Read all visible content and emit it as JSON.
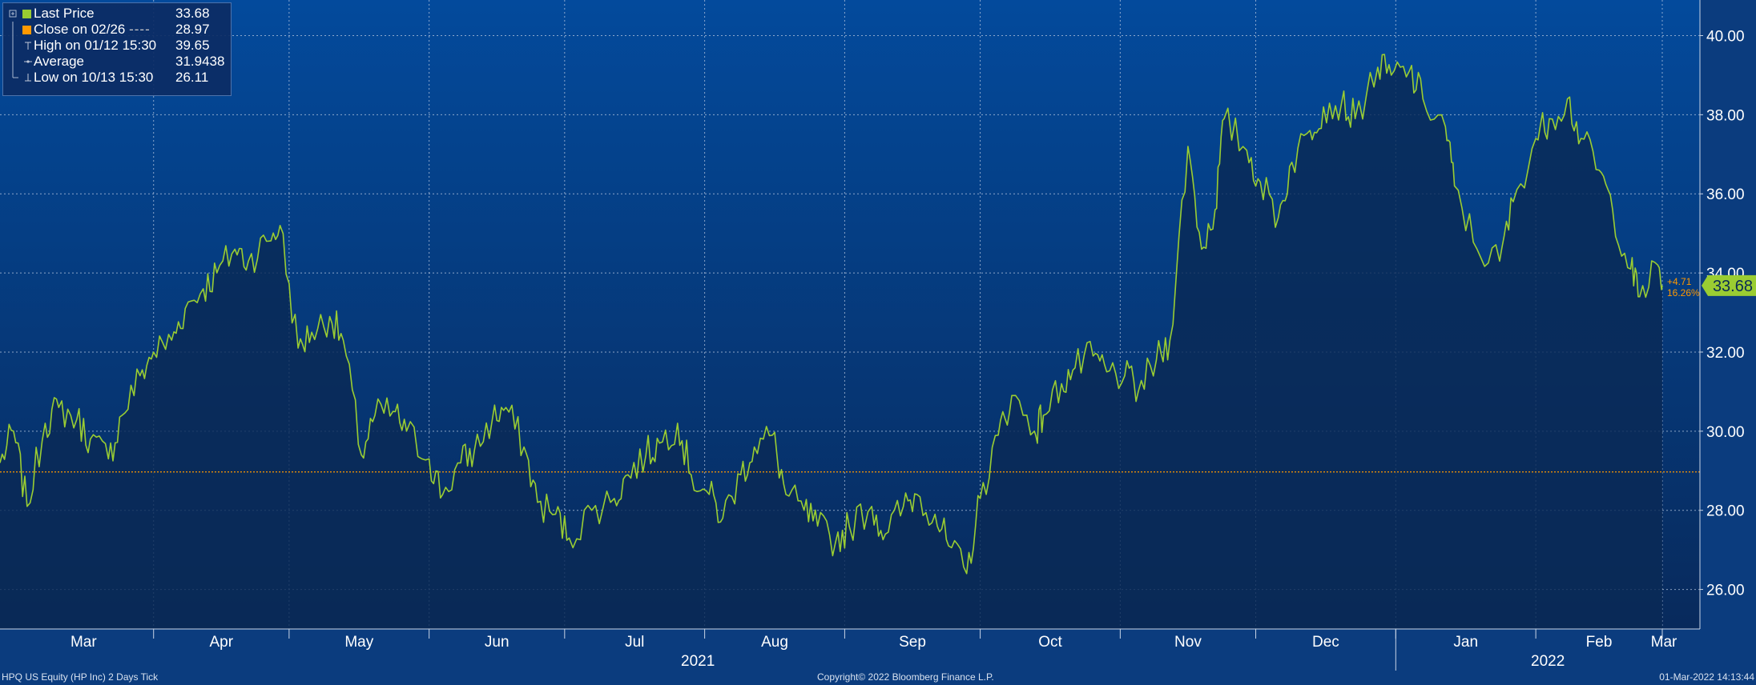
{
  "legend": {
    "last_price": {
      "label": "Last Price",
      "value": "33.68",
      "color": "#9acd32"
    },
    "close": {
      "label": "Close on 02/26",
      "dash": "----",
      "value": "28.97",
      "color": "#ff9900"
    },
    "high": {
      "label": "High on 01/12 15:30",
      "value": "39.65"
    },
    "average": {
      "label": "Average",
      "value": "31.9438"
    },
    "low": {
      "label": "Low on 10/13 15:30",
      "value": "26.11"
    }
  },
  "last_price_badge": {
    "value": "33.68",
    "change": "+4.71",
    "change_pct": "16.26%"
  },
  "footer": {
    "left": "HPQ US Equity (HP Inc) 2 Days  Tick",
    "center": "Copyright© 2022 Bloomberg Finance L.P.",
    "right": "01-Mar-2022 14:13:44"
  },
  "chart_data": {
    "type": "line",
    "y_axis_position": "right",
    "ylim": [
      25.0,
      40.9
    ],
    "yticks": [
      "26.00",
      "28.00",
      "30.00",
      "32.00",
      "34.00",
      "36.00",
      "38.00",
      "40.00"
    ],
    "x_months": [
      "Mar",
      "Apr",
      "May",
      "Jun",
      "Jul",
      "Aug",
      "Sep",
      "Oct",
      "Nov",
      "Dec",
      "Jan",
      "Feb",
      "Mar"
    ],
    "x_years": [
      "2021",
      "2022"
    ],
    "reference_line": {
      "name": "Close on 02/26",
      "value": 28.97,
      "color": "#ff9900"
    },
    "grid": true,
    "series": [
      {
        "name": "Last Price",
        "color": "#9acd32",
        "x": [
          "2021-02-26",
          "2021-03-01",
          "2021-03-04",
          "2021-03-08",
          "2021-03-11",
          "2021-03-15",
          "2021-03-18",
          "2021-03-22",
          "2021-03-25",
          "2021-03-29",
          "2021-04-01",
          "2021-04-05",
          "2021-04-08",
          "2021-04-12",
          "2021-04-15",
          "2021-04-19",
          "2021-04-22",
          "2021-04-26",
          "2021-04-29",
          "2021-05-03",
          "2021-05-06",
          "2021-05-10",
          "2021-05-13",
          "2021-05-17",
          "2021-05-20",
          "2021-05-24",
          "2021-05-27",
          "2021-06-01",
          "2021-06-04",
          "2021-06-08",
          "2021-06-11",
          "2021-06-15",
          "2021-06-18",
          "2021-06-22",
          "2021-06-25",
          "2021-06-29",
          "2021-07-02",
          "2021-07-07",
          "2021-07-12",
          "2021-07-15",
          "2021-07-19",
          "2021-07-22",
          "2021-07-26",
          "2021-07-29",
          "2021-08-02",
          "2021-08-05",
          "2021-08-09",
          "2021-08-12",
          "2021-08-16",
          "2021-08-19",
          "2021-08-23",
          "2021-08-26",
          "2021-08-30",
          "2021-09-02",
          "2021-09-07",
          "2021-09-10",
          "2021-09-14",
          "2021-09-17",
          "2021-09-21",
          "2021-09-24",
          "2021-09-28",
          "2021-10-01",
          "2021-10-05",
          "2021-10-08",
          "2021-10-13",
          "2021-10-15",
          "2021-10-19",
          "2021-10-22",
          "2021-10-26",
          "2021-10-29",
          "2021-11-02",
          "2021-11-05",
          "2021-11-09",
          "2021-11-12",
          "2021-11-16",
          "2021-11-19",
          "2021-11-22",
          "2021-11-24",
          "2021-11-29",
          "2021-12-02",
          "2021-12-06",
          "2021-12-09",
          "2021-12-13",
          "2021-12-16",
          "2021-12-20",
          "2021-12-23",
          "2021-12-28",
          "2021-12-31",
          "2022-01-04",
          "2022-01-07",
          "2022-01-12",
          "2022-01-14",
          "2022-01-19",
          "2022-01-24",
          "2022-01-27",
          "2022-02-01",
          "2022-02-04",
          "2022-02-08",
          "2022-02-11",
          "2022-02-15",
          "2022-02-18",
          "2022-02-22",
          "2022-02-24",
          "2022-02-28",
          "2022-03-01"
        ],
        "values": [
          29.2,
          30.0,
          28.1,
          30.2,
          30.6,
          30.3,
          29.8,
          29.3,
          30.4,
          31.4,
          32.0,
          32.3,
          33.1,
          33.6,
          34.0,
          34.6,
          34.3,
          34.8,
          35.2,
          32.1,
          32.5,
          32.9,
          32.3,
          29.4,
          30.4,
          30.5,
          30.0,
          29.3,
          28.4,
          29.2,
          29.5,
          30.3,
          30.6,
          29.6,
          28.2,
          27.9,
          27.3,
          28.0,
          28.3,
          28.9,
          29.4,
          29.7,
          30.2,
          28.9,
          28.4,
          27.8,
          28.9,
          29.6,
          29.9,
          28.4,
          28.0,
          27.6,
          27.2,
          27.6,
          28.1,
          27.4,
          28.1,
          28.4,
          27.9,
          27.1,
          26.4,
          28.3,
          29.9,
          30.9,
          30.0,
          30.4,
          31.2,
          31.6,
          31.9,
          31.5,
          31.4,
          31.0,
          31.8,
          32.3,
          37.2,
          34.6,
          35.6,
          37.9,
          37.1,
          36.3,
          35.4,
          36.8,
          37.6,
          38.2,
          38.3,
          37.9,
          39.2,
          39.0,
          39.1,
          38.4,
          37.7,
          36.2,
          34.6,
          34.3,
          35.8,
          37.4,
          37.9,
          38.4,
          37.4,
          36.6,
          35.6,
          34.1,
          33.4,
          34.2,
          33.68
        ]
      }
    ]
  }
}
